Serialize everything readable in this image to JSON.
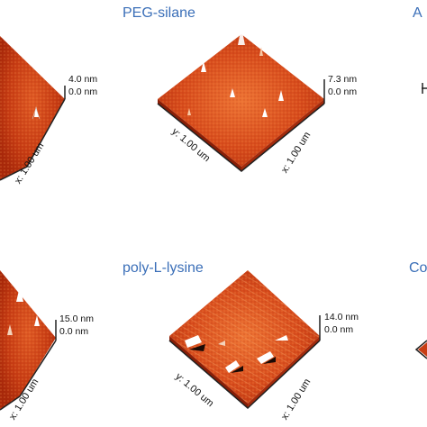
{
  "panels": [
    {
      "id": "top-left",
      "title": "",
      "z_max": "4.0 nm",
      "z_min": "0.0 nm",
      "x_axis": "x: 1.00 um",
      "y_axis": ""
    },
    {
      "id": "top-middle",
      "title": "PEG-silane",
      "z_max": "7.3 nm",
      "z_min": "0.0 nm",
      "x_axis": "x: 1.00 um",
      "y_axis": "y: 1.00 um"
    },
    {
      "id": "top-right",
      "title": "A",
      "z_max": "",
      "z_min": "",
      "x_axis": "",
      "y_axis": ""
    },
    {
      "id": "bottom-left",
      "title": "",
      "z_max": "15.0 nm",
      "z_min": "0.0 nm",
      "x_axis": "x: 1.00 um",
      "y_axis": ""
    },
    {
      "id": "bottom-middle",
      "title": "poly-L-lysine",
      "z_max": "14.0 nm",
      "z_min": "0.0 nm",
      "x_axis": "x: 1.00 um",
      "y_axis": "y: 1.00 um"
    },
    {
      "id": "bottom-right",
      "title": "Co",
      "z_max": "",
      "z_min": "",
      "x_axis": "",
      "y_axis": ""
    }
  ],
  "colors": {
    "title": "#3b6fb8",
    "surface_dark": "#b02a0c",
    "surface_mid": "#d9491c",
    "surface_light": "#f08a4a",
    "peak": "#ffffff"
  }
}
